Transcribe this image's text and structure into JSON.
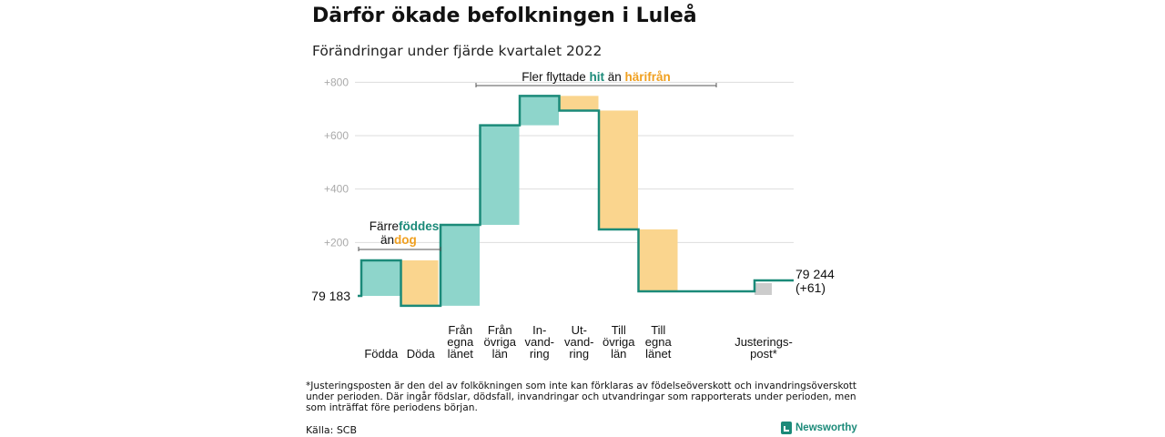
{
  "header": {
    "title": "Därför ökade befolkningen i Luleå",
    "subtitle": "Förändringar under fjärde kvartalet 2022"
  },
  "footer": {
    "footnote": "*Justeringsposten är den del av folkökningen som inte kan förklaras av födelseöverskott och invandringsöverskott under perioden. Där ingår födslar, dödsfall, invandringar och utvandringar som rapporterats under perioden, men som inträffat före periodens början.",
    "source": "Källa: SCB",
    "brand": "Newsworthy"
  },
  "colors": {
    "increase": "#8ed5cb",
    "decrease": "#fad58e",
    "adjustment": "#cccccc",
    "line": "#1b8a79",
    "grid": "#dddddd",
    "teal_text": "#1b8a79",
    "orange_text": "#f0a020"
  },
  "chart_data": {
    "type": "waterfall",
    "start_value": 79183,
    "start_label": "79 183",
    "end_value": 79244,
    "end_label": "79 244",
    "end_change_label": "(+61)",
    "y_ticks": [
      {
        "value": 200,
        "label": "+200"
      },
      {
        "value": 400,
        "label": "+400"
      },
      {
        "value": 600,
        "label": "+600"
      },
      {
        "value": 800,
        "label": "+800"
      }
    ],
    "ylim": [
      -50,
      800
    ],
    "steps": [
      {
        "label": [
          "Födda"
        ],
        "change": 133,
        "kind": "increase"
      },
      {
        "label": [
          "Döda"
        ],
        "change": -170,
        "kind": "decrease"
      },
      {
        "label": [
          "Från",
          "egna",
          "länet"
        ],
        "change": 303,
        "kind": "increase"
      },
      {
        "label": [
          "Från",
          "övriga",
          "län"
        ],
        "change": 373,
        "kind": "increase"
      },
      {
        "label": [
          "In-",
          "vand-",
          "ring"
        ],
        "change": 110,
        "kind": "increase"
      },
      {
        "label": [
          "Ut-",
          "vand-",
          "ring"
        ],
        "change": -55,
        "kind": "decrease"
      },
      {
        "label": [
          "Till",
          "övriga",
          "län"
        ],
        "change": -445,
        "kind": "decrease"
      },
      {
        "label": [
          "Till",
          "egna",
          "länet"
        ],
        "change": -232,
        "kind": "decrease"
      },
      {
        "label": [
          "Justerings-",
          "post*"
        ],
        "change": 44,
        "kind": "adjustment"
      }
    ],
    "annotations": [
      {
        "line1": "Färre",
        "teal": "föddes",
        "orange_prefix": "än",
        "orange": "dog"
      },
      {
        "prefix": "Fler flyttade",
        "teal": "hit",
        "middle": "än",
        "orange": "härifrån"
      }
    ]
  }
}
